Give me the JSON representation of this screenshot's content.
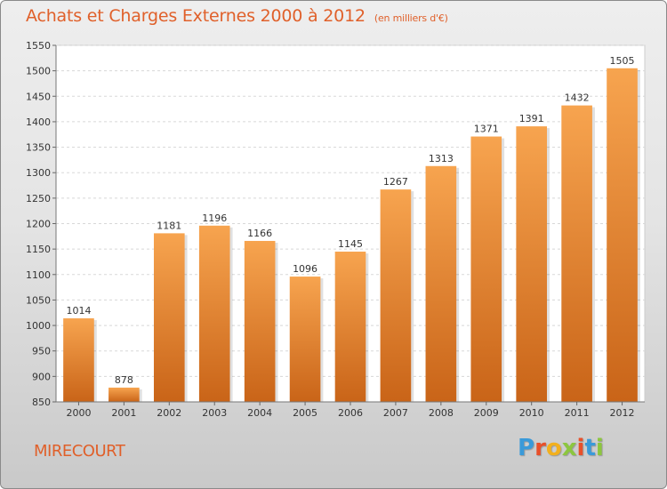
{
  "header": {
    "title": "Achats et Charges Externes 2000 à 2012",
    "unit": "(en milliers d'€)"
  },
  "footer": {
    "city": "MIRECOURT",
    "logo_letters": [
      "P",
      "r",
      "o",
      "x",
      "i",
      "t",
      "i"
    ],
    "logo_colors": [
      "#3a9ad9",
      "#e8502a",
      "#f2b01e",
      "#8cc63f",
      "#e8502a",
      "#3a9ad9",
      "#8cc63f"
    ]
  },
  "chart_data": {
    "type": "bar",
    "categories": [
      "2000",
      "2001",
      "2002",
      "2003",
      "2004",
      "2005",
      "2006",
      "2007",
      "2008",
      "2009",
      "2010",
      "2011",
      "2012"
    ],
    "values": [
      1014,
      878,
      1181,
      1196,
      1166,
      1096,
      1145,
      1267,
      1313,
      1371,
      1391,
      1432,
      1505
    ],
    "title": "Achats et Charges Externes 2000 à 2012",
    "ylim": [
      850,
      1550
    ],
    "yticks": [
      850,
      900,
      950,
      1000,
      1050,
      1100,
      1150,
      1200,
      1250,
      1300,
      1350,
      1400,
      1450,
      1500,
      1550
    ],
    "grid": true,
    "bar_color_top": "#f7a44f",
    "bar_color_bottom": "#c96418",
    "show_data_labels": true
  }
}
